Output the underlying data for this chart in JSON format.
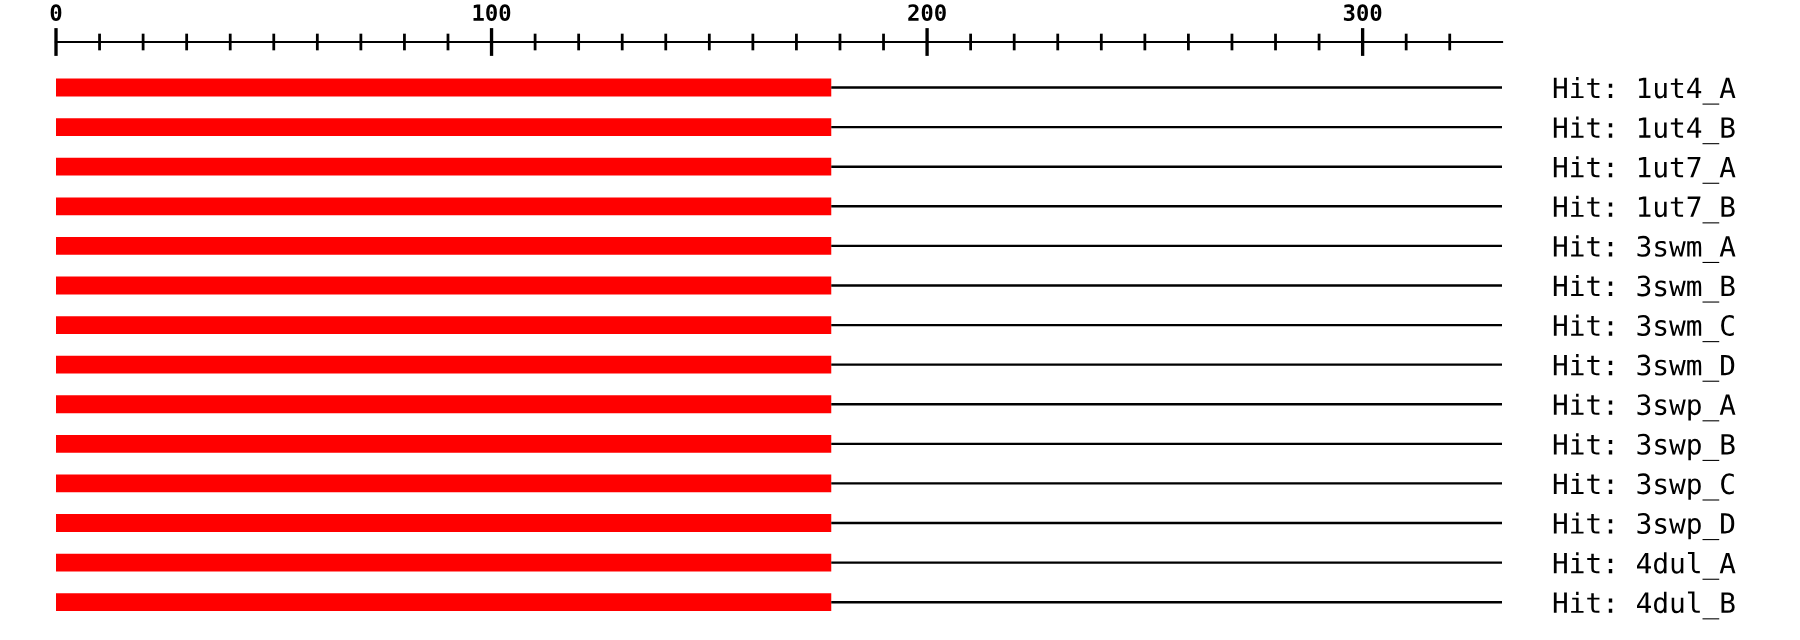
{
  "chart_data": {
    "type": "bar",
    "orientation": "horizontal",
    "stacked": true,
    "categories": [
      "Hit: 1ut4_A",
      "Hit: 1ut4_B",
      "Hit: 1ut7_A",
      "Hit: 1ut7_B",
      "Hit: 3swm_A",
      "Hit: 3swm_B",
      "Hit: 3swm_C",
      "Hit: 3swm_D",
      "Hit: 3swp_A",
      "Hit: 3swp_B",
      "Hit: 3swp_C",
      "Hit: 3swp_D",
      "Hit: 4dul_A",
      "Hit: 4dul_B"
    ],
    "series": [
      {
        "color": "#ff0000",
        "values": [
          178,
          178,
          178,
          178,
          178,
          178,
          178,
          178,
          178,
          178,
          178,
          178,
          178,
          178
        ]
      },
      {
        "color": "#000000",
        "values": [
          154,
          154,
          154,
          154,
          154,
          154,
          154,
          154,
          154,
          154,
          154,
          154,
          154,
          154
        ]
      }
    ],
    "xlim": [
      0,
      332
    ],
    "xticks": [
      0,
      {
        "value": 10,
        "label": null
      },
      {
        "value": 20,
        "label": null
      },
      {
        "value": 30,
        "label": null
      },
      {
        "value": 40,
        "label": null
      },
      {
        "value": 50,
        "label": null
      },
      {
        "value": 60,
        "label": null
      },
      {
        "value": 70,
        "label": null
      },
      {
        "value": 80,
        "label": null
      },
      {
        "value": 90,
        "label": null
      },
      100,
      {
        "value": 110,
        "label": null
      },
      {
        "value": 120,
        "label": null
      },
      {
        "value": 130,
        "label": null
      },
      {
        "value": 140,
        "label": null
      },
      {
        "value": 150,
        "label": null
      },
      {
        "value": 160,
        "label": null
      },
      {
        "value": 170,
        "label": null
      },
      {
        "value": 180,
        "label": null
      },
      {
        "value": 190,
        "label": null
      },
      200,
      {
        "value": 210,
        "label": null
      },
      {
        "value": 220,
        "label": null
      },
      {
        "value": 230,
        "label": null
      },
      {
        "value": 240,
        "label": null
      },
      {
        "value": 250,
        "label": null
      },
      {
        "value": 260,
        "label": null
      },
      {
        "value": 270,
        "label": null
      },
      {
        "value": 280,
        "label": null
      },
      {
        "value": 290,
        "label": null
      },
      300,
      {
        "value": 310,
        "label": null
      },
      {
        "value": 320,
        "label": null
      }
    ],
    "grid": false,
    "legend": false
  }
}
